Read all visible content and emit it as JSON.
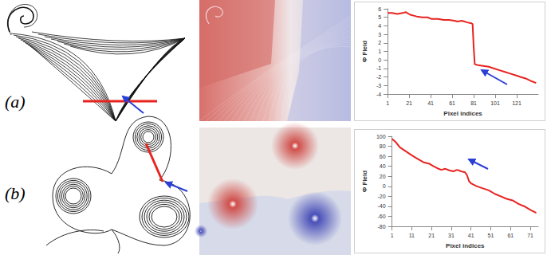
{
  "panel_labels": [
    "(a)",
    "(b)"
  ],
  "chart_data": [
    {
      "type": "line",
      "x_label": "Pixel indices",
      "y_label": "Φ Field",
      "x": [
        1,
        5,
        10,
        15,
        18,
        22,
        28,
        33,
        38,
        42,
        48,
        53,
        58,
        63,
        66,
        70,
        75,
        79,
        80,
        81,
        82,
        85,
        90,
        95,
        100,
        105,
        110,
        115,
        120,
        125,
        130,
        135,
        139
      ],
      "values": [
        5.5,
        5.5,
        5.4,
        5.5,
        5.6,
        5.3,
        5.1,
        5.0,
        5.0,
        4.8,
        4.8,
        4.7,
        4.7,
        4.6,
        4.5,
        4.6,
        4.4,
        4.3,
        4.2,
        1.5,
        -0.5,
        -0.6,
        -0.7,
        -0.8,
        -1.0,
        -1.2,
        -1.4,
        -1.6,
        -1.8,
        -2.0,
        -2.2,
        -2.5,
        -2.7
      ],
      "color": "#e8231f",
      "xlim": [
        1,
        141
      ],
      "xticks": [
        1,
        21,
        41,
        61,
        81,
        101,
        121
      ],
      "ylim": [
        -4,
        6
      ],
      "yticks": [
        -4,
        -3,
        -2,
        -1,
        0,
        1,
        2,
        3,
        4,
        5,
        6
      ],
      "grid": false
    },
    {
      "type": "line",
      "x_label": "Pixel indices",
      "y_label": "Φ Field",
      "x": [
        1,
        3,
        5,
        8,
        11,
        14,
        17,
        20,
        22,
        24,
        26,
        28,
        30,
        32,
        34,
        36,
        38,
        39,
        40,
        41,
        44,
        47,
        50,
        53,
        56,
        59,
        62,
        65,
        68,
        71,
        74
      ],
      "values": [
        95,
        88,
        78,
        70,
        62,
        55,
        48,
        45,
        40,
        36,
        33,
        35,
        32,
        30,
        33,
        30,
        28,
        22,
        10,
        6,
        0,
        -4,
        -8,
        -15,
        -20,
        -25,
        -28,
        -35,
        -40,
        -47,
        -53
      ],
      "color": "#e8231f",
      "xlim": [
        1,
        75
      ],
      "xticks": [
        1,
        11,
        21,
        31,
        41,
        51,
        61,
        71
      ],
      "ylim": [
        -80,
        100
      ],
      "yticks": [
        -80,
        -60,
        -40,
        -20,
        0,
        20,
        40,
        60,
        80,
        100
      ],
      "grid": false
    }
  ]
}
